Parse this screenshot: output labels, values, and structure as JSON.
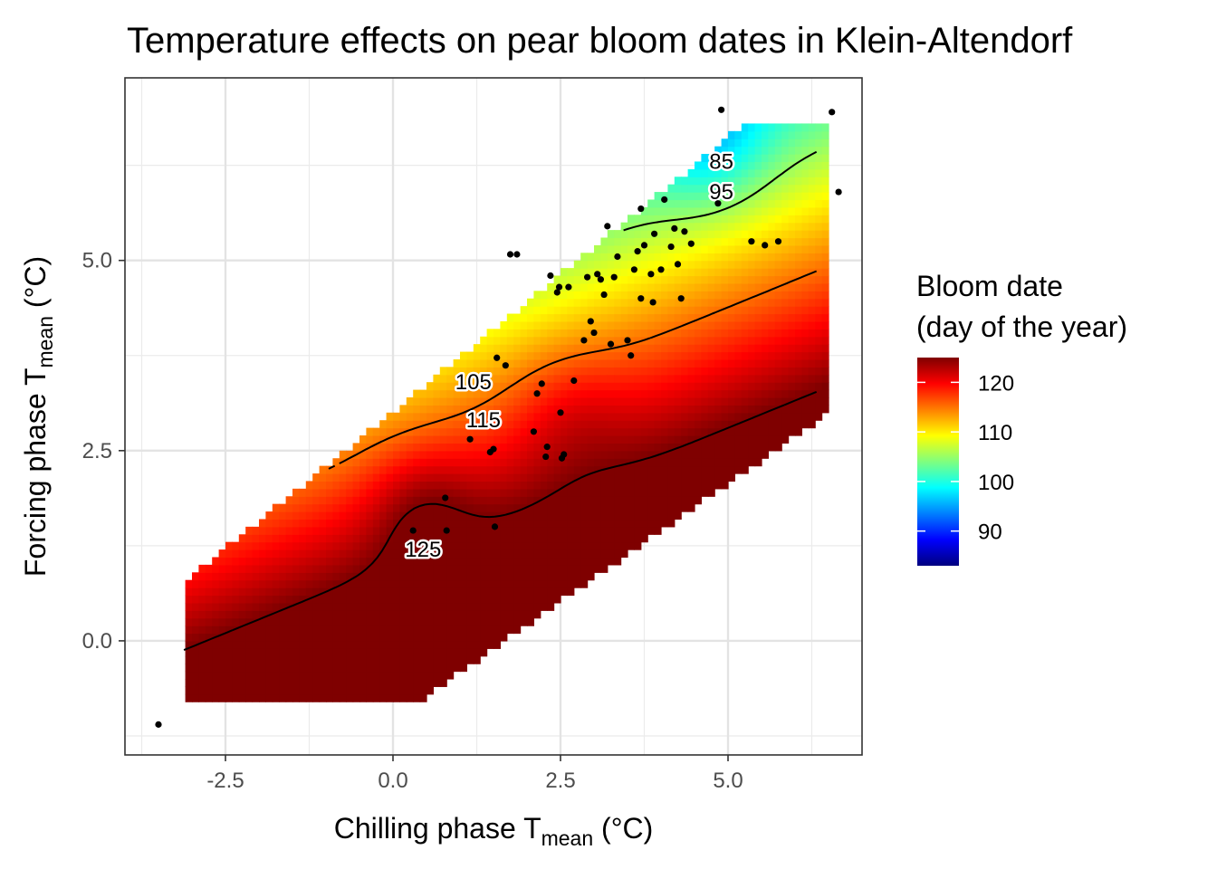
{
  "chart_data": {
    "type": "heatmap",
    "title": "Temperature effects on pear bloom dates in Klein-Altendorf",
    "xlabel": {
      "main": "Chilling phase T",
      "sub": "mean",
      "unit": " (°C)"
    },
    "ylabel": {
      "main": "Forcing phase T",
      "sub": "mean",
      "unit": " (°C)"
    },
    "xlim": [
      -4.0,
      7.0
    ],
    "ylim": [
      -1.5,
      7.4
    ],
    "x_ticks": [
      -2.5,
      0.0,
      2.5,
      5.0
    ],
    "x_tick_labels": [
      "-2.5",
      "0.0",
      "2.5",
      "5.0"
    ],
    "y_ticks": [
      0.0,
      2.5,
      5.0
    ],
    "y_tick_labels": [
      "0.0",
      "2.5",
      "5.0"
    ],
    "grid": true,
    "colorscale": [
      "#00007f",
      "#0000ff",
      "#007fff",
      "#00ffff",
      "#7fff7f",
      "#ffff00",
      "#ff7f00",
      "#ff0000",
      "#7f0000"
    ],
    "colorscale_range": [
      83,
      125
    ],
    "legend": {
      "title_line1": "Bloom date",
      "title_line2": "(day of the year)",
      "position": "right",
      "ticks": [
        120,
        110,
        100,
        90
      ],
      "tick_labels": [
        "120",
        "110",
        "100",
        "90"
      ]
    },
    "contour_levels": [
      85,
      95,
      105,
      115,
      125
    ],
    "contour_labels": [
      {
        "text": "85",
        "x": 4.9,
        "y": 6.3
      },
      {
        "text": "95",
        "x": 4.9,
        "y": 5.9
      },
      {
        "text": "105",
        "x": 1.2,
        "y": 3.4
      },
      {
        "text": "115",
        "x": 1.35,
        "y": 2.9
      },
      {
        "text": "125",
        "x": 0.45,
        "y": 1.2
      }
    ],
    "observations": [
      {
        "x": -3.5,
        "y": -1.1
      },
      {
        "x": 0.3,
        "y": 1.45
      },
      {
        "x": 0.8,
        "y": 1.45
      },
      {
        "x": 0.78,
        "y": 1.88
      },
      {
        "x": 1.52,
        "y": 1.5
      },
      {
        "x": 1.45,
        "y": 2.48
      },
      {
        "x": 1.5,
        "y": 2.52
      },
      {
        "x": 1.15,
        "y": 2.65
      },
      {
        "x": 1.55,
        "y": 3.72
      },
      {
        "x": 1.68,
        "y": 3.62
      },
      {
        "x": 1.75,
        "y": 5.08
      },
      {
        "x": 1.85,
        "y": 5.08
      },
      {
        "x": 2.1,
        "y": 2.75
      },
      {
        "x": 2.15,
        "y": 3.25
      },
      {
        "x": 2.22,
        "y": 3.38
      },
      {
        "x": 2.28,
        "y": 2.42
      },
      {
        "x": 2.3,
        "y": 2.55
      },
      {
        "x": 2.35,
        "y": 4.8
      },
      {
        "x": 2.45,
        "y": 4.58
      },
      {
        "x": 2.48,
        "y": 4.65
      },
      {
        "x": 2.52,
        "y": 2.4
      },
      {
        "x": 2.55,
        "y": 2.45
      },
      {
        "x": 2.5,
        "y": 3.0
      },
      {
        "x": 2.62,
        "y": 4.65
      },
      {
        "x": 2.7,
        "y": 3.42
      },
      {
        "x": 2.85,
        "y": 3.95
      },
      {
        "x": 2.9,
        "y": 4.78
      },
      {
        "x": 2.95,
        "y": 4.2
      },
      {
        "x": 3.0,
        "y": 4.05
      },
      {
        "x": 3.05,
        "y": 4.82
      },
      {
        "x": 3.1,
        "y": 4.75
      },
      {
        "x": 3.15,
        "y": 4.55
      },
      {
        "x": 3.2,
        "y": 5.45
      },
      {
        "x": 3.25,
        "y": 3.9
      },
      {
        "x": 3.3,
        "y": 4.78
      },
      {
        "x": 3.35,
        "y": 5.05
      },
      {
        "x": 3.55,
        "y": 3.75
      },
      {
        "x": 3.5,
        "y": 3.95
      },
      {
        "x": 3.6,
        "y": 4.88
      },
      {
        "x": 3.65,
        "y": 5.12
      },
      {
        "x": 3.7,
        "y": 4.5
      },
      {
        "x": 3.7,
        "y": 5.68
      },
      {
        "x": 3.75,
        "y": 5.2
      },
      {
        "x": 3.85,
        "y": 4.82
      },
      {
        "x": 3.88,
        "y": 4.45
      },
      {
        "x": 3.9,
        "y": 5.35
      },
      {
        "x": 4.0,
        "y": 4.88
      },
      {
        "x": 4.05,
        "y": 5.8
      },
      {
        "x": 4.15,
        "y": 5.18
      },
      {
        "x": 4.2,
        "y": 5.42
      },
      {
        "x": 4.25,
        "y": 4.95
      },
      {
        "x": 4.3,
        "y": 4.5
      },
      {
        "x": 4.35,
        "y": 5.38
      },
      {
        "x": 4.45,
        "y": 5.22
      },
      {
        "x": 4.85,
        "y": 5.75
      },
      {
        "x": 4.9,
        "y": 6.98
      },
      {
        "x": 5.35,
        "y": 5.25
      },
      {
        "x": 5.55,
        "y": 5.2
      },
      {
        "x": 5.75,
        "y": 5.25
      },
      {
        "x": 6.55,
        "y": 6.95
      },
      {
        "x": 6.65,
        "y": 5.9
      }
    ]
  }
}
